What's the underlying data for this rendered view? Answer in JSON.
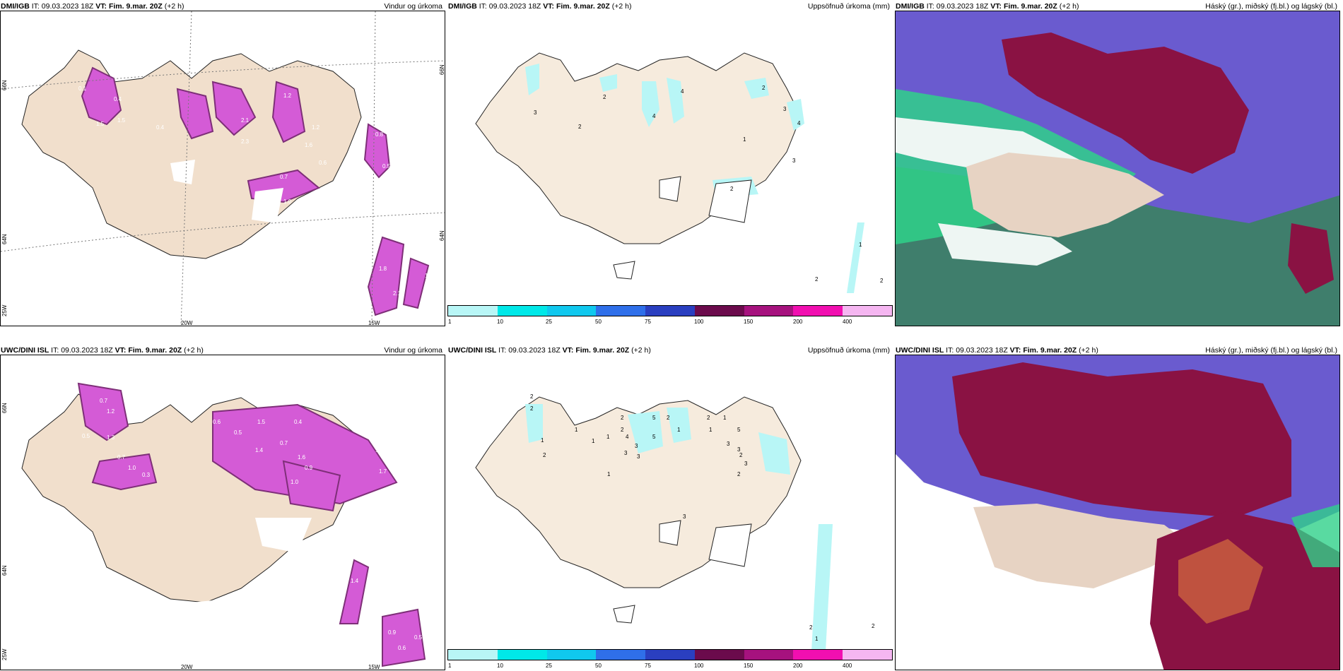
{
  "panels": [
    {
      "model": "DMI/IGB",
      "it_label": "IT:",
      "it": "09.03.2023 18Z",
      "vt_label": "VT:",
      "vt": "Fim. 9.mar. 20Z",
      "lead": "(+2 h)",
      "variable": "Vindur og úrkoma"
    },
    {
      "model": "DMI/IGB",
      "it_label": "IT:",
      "it": "09.03.2023 18Z",
      "vt_label": "VT:",
      "vt": "Fim. 9.mar. 20Z",
      "lead": "(+2 h)",
      "variable": "Uppsöfnuð úrkoma (mm)"
    },
    {
      "model": "DMI/IGB",
      "it_label": "IT:",
      "it": "09.03.2023 18Z",
      "vt_label": "VT:",
      "vt": "Fim. 9.mar. 20Z",
      "lead": "(+2 h)",
      "variable": "Háský (gr.), miðský (fj.bl.) og lágský (bl.)"
    },
    {
      "model": "UWC/DINI ISL",
      "it_label": "IT:",
      "it": "09.03.2023 18Z",
      "vt_label": "VT:",
      "vt": "Fim. 9.mar. 20Z",
      "lead": "(+2 h)",
      "variable": "Vindur og úrkoma"
    },
    {
      "model": "UWC/DINI ISL",
      "it_label": "IT:",
      "it": "09.03.2023 18Z",
      "vt_label": "VT:",
      "vt": "Fim. 9.mar. 20Z",
      "lead": "(+2 h)",
      "variable": "Uppsöfnuð úrkoma (mm)"
    },
    {
      "model": "UWC/DINI ISL",
      "it_label": "IT:",
      "it": "09.03.2023 18Z",
      "vt_label": "VT:",
      "vt": "Fim. 9.mar. 20Z",
      "lead": "(+2 h)",
      "variable": "Háský (gr.), miðský (fj.bl.) og lágský (bl.)"
    }
  ],
  "axes": {
    "lon1": "20W",
    "lon2": "15W",
    "lat66": "66N",
    "lat64": "64N",
    "lat_low": "25W",
    "lat_right": "66N",
    "lat_right2": "64N"
  },
  "scale": {
    "labels": [
      "1",
      "10",
      "25",
      "50",
      "75",
      "100",
      "150",
      "200",
      "400"
    ],
    "colors": [
      "#b8f6f6",
      "#00e8e8",
      "#10c8ee",
      "#2f6fe9",
      "#2a3fc0",
      "#6b0b4c",
      "#a6127e",
      "#f10fb0",
      "#f5b6f1"
    ]
  },
  "precip_labels_top": [
    "3",
    "2",
    "2",
    "4",
    "4",
    "2",
    "3",
    "4",
    "1",
    "3",
    "2",
    "1",
    "2",
    "2"
  ],
  "precip_labels_bottom": [
    "2",
    "2",
    "1",
    "1",
    "1",
    "2",
    "2",
    "5",
    "2",
    "4",
    "3",
    "5",
    "3",
    "3",
    "1",
    "2",
    "1",
    "5",
    "3",
    "2",
    "1",
    "1",
    "3",
    "2",
    "3",
    "2",
    "1",
    "3",
    "2",
    "1",
    "2"
  ],
  "rain_labels_top": [
    "0.1",
    "0.4",
    "1.5",
    "1.5",
    "0.4",
    "1.2",
    "2.1",
    "2.3",
    "1.6",
    "1.2",
    "0.7",
    "0.6",
    "1.0",
    "0.8",
    "0.5",
    "1.8",
    "2.1",
    "1.0"
  ],
  "rain_labels_bottom": [
    "0.7",
    "1.2",
    "0.3",
    "0.5",
    "1.3",
    "0.7",
    "1.0",
    "0.3",
    "0.6",
    "0.5",
    "0.4",
    "1.5",
    "1.4",
    "0.7",
    "1.6",
    "0.9",
    "1.0",
    "0.3",
    "0.3",
    "1.4",
    "1.7",
    "1.4",
    "0.9",
    "0.6",
    "0.5"
  ],
  "colors": {
    "land": "#f1dfcc",
    "precip": "#d45bd6",
    "precip_dark": "#7e2f78",
    "cloud_high": "#8a1243",
    "cloud_mid": "#6a5bcf",
    "cloud_low": "#3f7e6c",
    "cloud_green": "#2fd18a"
  }
}
